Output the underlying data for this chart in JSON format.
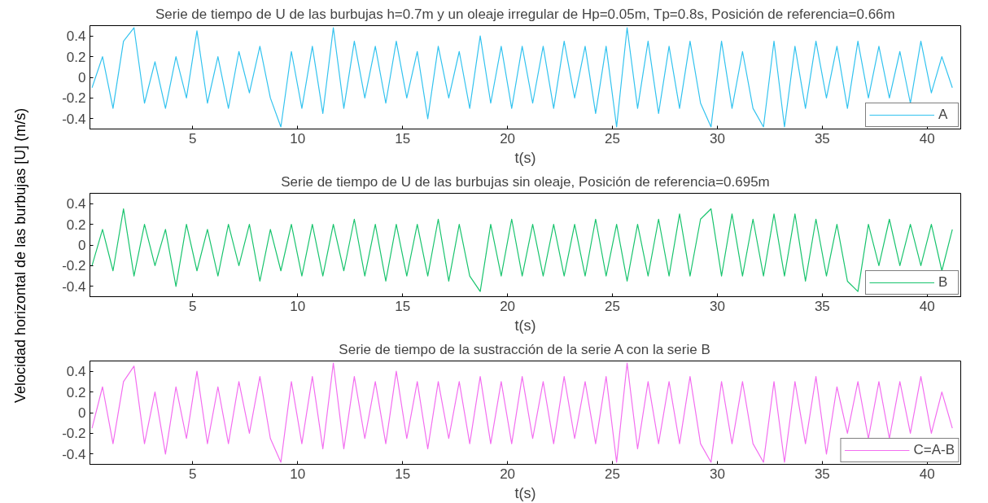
{
  "chart_data": [
    {
      "type": "line",
      "title": "Serie de tiempo de U de las burbujas h=0.7m y un oleaje irregular de Hp=0.05m, Tp=0.8s, Posición de referencia=0.66m",
      "xlabel": "t(s)",
      "xlim": [
        0.1,
        41.6
      ],
      "ylim": [
        -0.5,
        0.5
      ],
      "xticks": [
        5,
        10,
        15,
        20,
        25,
        30,
        35,
        40
      ],
      "yticks": [
        -0.4,
        -0.2,
        0,
        0.2,
        0.4
      ],
      "grid": false,
      "legend": "bottom right",
      "line_style": "solid",
      "x": [
        0.2,
        0.7,
        1.2,
        1.7,
        2.2,
        2.7,
        3.2,
        3.7,
        4.2,
        4.7,
        5.2,
        5.7,
        6.2,
        6.7,
        7.2,
        7.7,
        8.2,
        8.7,
        9.2,
        9.7,
        10.2,
        10.7,
        11.2,
        11.7,
        12.2,
        12.7,
        13.2,
        13.7,
        14.2,
        14.7,
        15.2,
        15.7,
        16.2,
        16.7,
        17.2,
        17.7,
        18.2,
        18.7,
        19.2,
        19.7,
        20.2,
        20.7,
        21.2,
        21.7,
        22.2,
        22.7,
        23.2,
        23.7,
        24.2,
        24.7,
        25.2,
        25.7,
        26.2,
        26.7,
        27.2,
        27.7,
        28.2,
        28.7,
        29.2,
        29.7,
        30.2,
        30.7,
        31.2,
        31.7,
        32.2,
        32.7,
        33.2,
        33.7,
        34.2,
        34.7,
        35.2,
        35.7,
        36.2,
        36.7,
        37.2,
        37.7,
        38.2,
        38.7,
        39.2,
        39.7,
        40.2,
        40.7,
        41.2
      ],
      "series": [
        {
          "name": "A",
          "color": "#33c3ef",
          "values": [
            -0.1,
            0.2,
            -0.3,
            0.35,
            0.48,
            -0.25,
            0.15,
            -0.3,
            0.2,
            -0.2,
            0.45,
            -0.25,
            0.2,
            -0.3,
            0.25,
            -0.15,
            0.3,
            -0.2,
            -0.48,
            0.25,
            -0.3,
            0.3,
            -0.35,
            0.48,
            -0.3,
            0.35,
            -0.2,
            0.3,
            -0.25,
            0.35,
            -0.2,
            0.25,
            -0.4,
            0.3,
            -0.2,
            0.25,
            -0.3,
            0.4,
            -0.25,
            0.3,
            -0.3,
            0.3,
            -0.25,
            0.3,
            -0.3,
            0.35,
            -0.2,
            0.3,
            -0.35,
            0.3,
            -0.48,
            0.48,
            -0.3,
            0.35,
            -0.35,
            0.3,
            -0.3,
            0.35,
            -0.25,
            -0.48,
            0.35,
            -0.3,
            0.25,
            -0.3,
            -0.48,
            0.35,
            -0.48,
            0.3,
            -0.3,
            0.35,
            -0.2,
            0.3,
            -0.3,
            0.35,
            -0.2,
            0.3,
            -0.2,
            0.25,
            -0.25,
            0.35,
            -0.15,
            0.2,
            -0.1
          ]
        }
      ]
    },
    {
      "type": "line",
      "title": "Serie de tiempo de U de las burbujas sin oleaje, Posición de referencia=0.695m",
      "xlabel": "t(s)",
      "ylabel": "Velocidad horizontal de las burbujas [U] (m/s)",
      "xlim": [
        0.1,
        41.6
      ],
      "ylim": [
        -0.5,
        0.5
      ],
      "xticks": [
        5,
        10,
        15,
        20,
        25,
        30,
        35,
        40
      ],
      "yticks": [
        -0.4,
        -0.2,
        0,
        0.2,
        0.4
      ],
      "grid": false,
      "legend": "bottom right",
      "line_style": "solid",
      "x": [
        0.2,
        0.7,
        1.2,
        1.7,
        2.2,
        2.7,
        3.2,
        3.7,
        4.2,
        4.7,
        5.2,
        5.7,
        6.2,
        6.7,
        7.2,
        7.7,
        8.2,
        8.7,
        9.2,
        9.7,
        10.2,
        10.7,
        11.2,
        11.7,
        12.2,
        12.7,
        13.2,
        13.7,
        14.2,
        14.7,
        15.2,
        15.7,
        16.2,
        16.7,
        17.2,
        17.7,
        18.2,
        18.7,
        19.2,
        19.7,
        20.2,
        20.7,
        21.2,
        21.7,
        22.2,
        22.7,
        23.2,
        23.7,
        24.2,
        24.7,
        25.2,
        25.7,
        26.2,
        26.7,
        27.2,
        27.7,
        28.2,
        28.7,
        29.2,
        29.7,
        30.2,
        30.7,
        31.2,
        31.7,
        32.2,
        32.7,
        33.2,
        33.7,
        34.2,
        34.7,
        35.2,
        35.7,
        36.2,
        36.7,
        37.2,
        37.7,
        38.2,
        38.7,
        39.2,
        39.7,
        40.2,
        40.7,
        41.2
      ],
      "series": [
        {
          "name": "B",
          "color": "#19c46e",
          "values": [
            -0.2,
            0.15,
            -0.25,
            0.35,
            -0.3,
            0.2,
            -0.2,
            0.15,
            -0.4,
            0.2,
            -0.25,
            0.15,
            -0.3,
            0.2,
            -0.2,
            0.2,
            -0.35,
            0.15,
            -0.25,
            0.2,
            -0.3,
            0.2,
            -0.3,
            0.2,
            -0.25,
            0.25,
            -0.3,
            0.2,
            -0.35,
            0.2,
            -0.3,
            0.2,
            -0.3,
            0.25,
            -0.35,
            0.2,
            -0.3,
            -0.45,
            0.2,
            -0.3,
            0.25,
            -0.3,
            0.2,
            -0.3,
            0.2,
            -0.3,
            0.2,
            -0.3,
            0.25,
            -0.3,
            0.2,
            -0.35,
            0.2,
            -0.3,
            0.25,
            -0.3,
            0.3,
            -0.3,
            0.25,
            0.35,
            -0.3,
            0.3,
            -0.3,
            0.25,
            -0.3,
            0.3,
            -0.3,
            0.3,
            -0.35,
            0.25,
            -0.3,
            0.2,
            -0.35,
            -0.45,
            0.2,
            -0.2,
            0.25,
            -0.2,
            0.2,
            -0.2,
            0.2,
            -0.25,
            0.15
          ]
        }
      ]
    },
    {
      "type": "line",
      "title": "Serie de tiempo de la sustracción de la serie A con la serie B",
      "xlabel": "t(s)",
      "xlim": [
        0.1,
        41.6
      ],
      "ylim": [
        -0.5,
        0.5
      ],
      "xticks": [
        5,
        10,
        15,
        20,
        25,
        30,
        35,
        40
      ],
      "yticks": [
        -0.4,
        -0.2,
        0,
        0.2,
        0.4
      ],
      "grid": false,
      "legend": "bottom right",
      "line_style": "solid",
      "x": [
        0.2,
        0.7,
        1.2,
        1.7,
        2.2,
        2.7,
        3.2,
        3.7,
        4.2,
        4.7,
        5.2,
        5.7,
        6.2,
        6.7,
        7.2,
        7.7,
        8.2,
        8.7,
        9.2,
        9.7,
        10.2,
        10.7,
        11.2,
        11.7,
        12.2,
        12.7,
        13.2,
        13.7,
        14.2,
        14.7,
        15.2,
        15.7,
        16.2,
        16.7,
        17.2,
        17.7,
        18.2,
        18.7,
        19.2,
        19.7,
        20.2,
        20.7,
        21.2,
        21.7,
        22.2,
        22.7,
        23.2,
        23.7,
        24.2,
        24.7,
        25.2,
        25.7,
        26.2,
        26.7,
        27.2,
        27.7,
        28.2,
        28.7,
        29.2,
        29.7,
        30.2,
        30.7,
        31.2,
        31.7,
        32.2,
        32.7,
        33.2,
        33.7,
        34.2,
        34.7,
        35.2,
        35.7,
        36.2,
        36.7,
        37.2,
        37.7,
        38.2,
        38.7,
        39.2,
        39.7,
        40.2,
        40.7,
        41.2
      ],
      "series": [
        {
          "name": "C=A-B",
          "color": "#f36ef0",
          "values": [
            -0.15,
            0.25,
            -0.3,
            0.3,
            0.45,
            -0.3,
            0.2,
            -0.4,
            0.25,
            -0.25,
            0.4,
            -0.3,
            0.25,
            -0.3,
            0.3,
            -0.2,
            0.35,
            -0.25,
            -0.48,
            0.3,
            -0.3,
            0.35,
            -0.35,
            0.48,
            -0.35,
            0.35,
            -0.25,
            0.3,
            -0.3,
            0.4,
            -0.25,
            0.3,
            -0.35,
            0.3,
            -0.25,
            0.3,
            -0.3,
            0.35,
            -0.3,
            0.3,
            -0.3,
            0.35,
            -0.25,
            0.3,
            -0.3,
            0.35,
            -0.25,
            0.3,
            -0.3,
            0.35,
            -0.48,
            0.48,
            -0.35,
            0.3,
            -0.3,
            0.3,
            -0.3,
            0.35,
            -0.3,
            -0.48,
            0.3,
            -0.3,
            0.3,
            -0.3,
            -0.48,
            0.3,
            -0.48,
            0.3,
            -0.3,
            0.35,
            -0.4,
            0.25,
            -0.2,
            0.3,
            -0.25,
            0.3,
            -0.25,
            0.3,
            -0.2,
            0.35,
            -0.2,
            0.2,
            -0.15
          ]
        }
      ]
    }
  ]
}
